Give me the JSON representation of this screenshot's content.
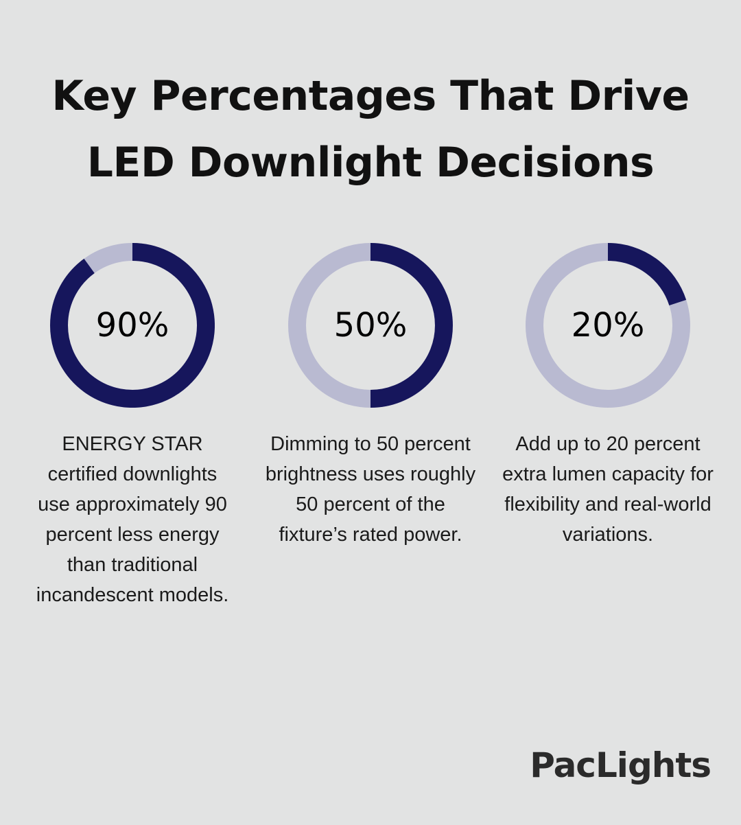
{
  "title": {
    "line1": "Key Percentages That Drive",
    "line2": "LED Downlight Decisions"
  },
  "colors": {
    "background": "#e2e3e3",
    "ring_fill": "#16165c",
    "ring_track": "#b9bad1"
  },
  "chart_data": [
    {
      "type": "pie",
      "value": 90,
      "label": "90%",
      "description": "ENERGY STAR certified downlights use approximately 90 percent less energy than traditional incandescent models."
    },
    {
      "type": "pie",
      "value": 50,
      "label": "50%",
      "description": "Dimming to 50 percent brightness uses roughly 50 percent of the fixture’s rated power."
    },
    {
      "type": "pie",
      "value": 20,
      "label": "20%",
      "description": "Add up to 20 percent extra lumen capacity for flexibility and real-world variations."
    }
  ],
  "brand": "PacLights"
}
